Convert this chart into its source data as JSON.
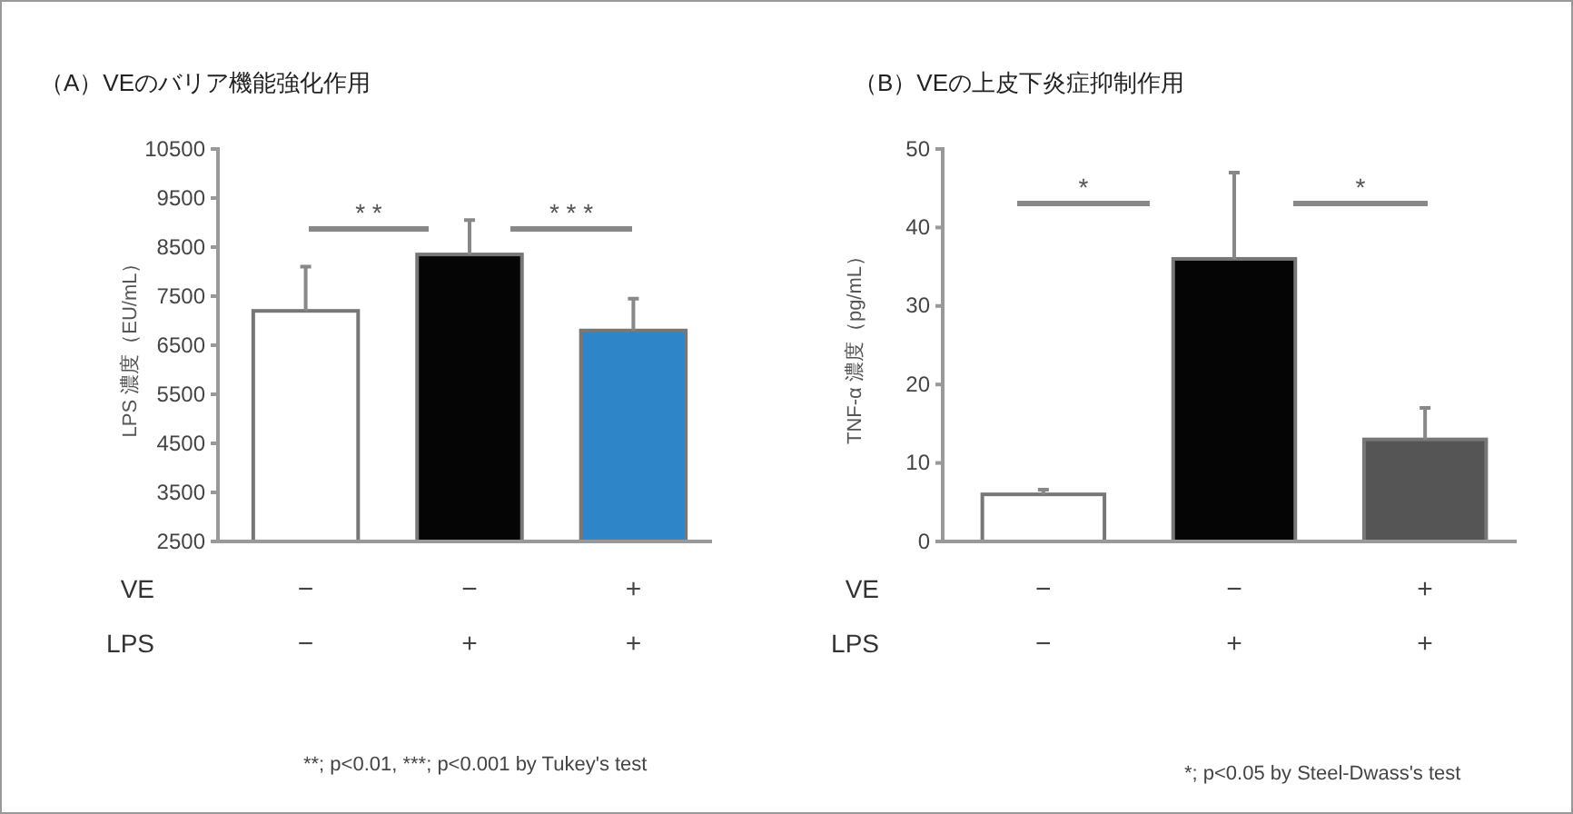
{
  "chart_data": [
    {
      "type": "bar",
      "title": "（A）VEのバリア機能強化作用",
      "ylabel": "LPS 濃度（EU/mL）",
      "categories": [
        "−\n−",
        "−\n+",
        "+\n+"
      ],
      "values": [
        7200,
        8350,
        6800
      ],
      "errors": [
        [
          7200,
          8100
        ],
        [
          8350,
          9050
        ],
        [
          6800,
          7450
        ]
      ],
      "colors": [
        "#ffffff",
        "#050505",
        "#2e86c8"
      ],
      "ylim": [
        2500,
        10500
      ],
      "yticks": [
        2500,
        3500,
        4500,
        5500,
        6500,
        7500,
        8500,
        9500,
        10500
      ],
      "grid": false,
      "annotations": [
        "VE",
        "LPS",
        "* *",
        "* * *",
        "**; p<0.01, ***; p<0.001 by Tukey's test"
      ]
    },
    {
      "type": "bar",
      "title": "（B）VEの上皮下炎症抑制作用",
      "ylabel": "TNF-α 濃度（pg/mL）",
      "categories": [
        "−\n−",
        "−\n+",
        "+\n+"
      ],
      "values": [
        6,
        36,
        13
      ],
      "errors": [
        [
          6,
          6.6
        ],
        [
          36,
          47
        ],
        [
          13,
          17
        ]
      ],
      "colors": [
        "#ffffff",
        "#050505",
        "#555555"
      ],
      "ylim": [
        0,
        50
      ],
      "yticks": [
        0,
        10,
        20,
        30,
        40,
        50
      ],
      "grid": false,
      "annotations": [
        "VE",
        "LPS",
        "*",
        "*",
        "*; p<0.05 by Steel-Dwass's test"
      ]
    }
  ]
}
